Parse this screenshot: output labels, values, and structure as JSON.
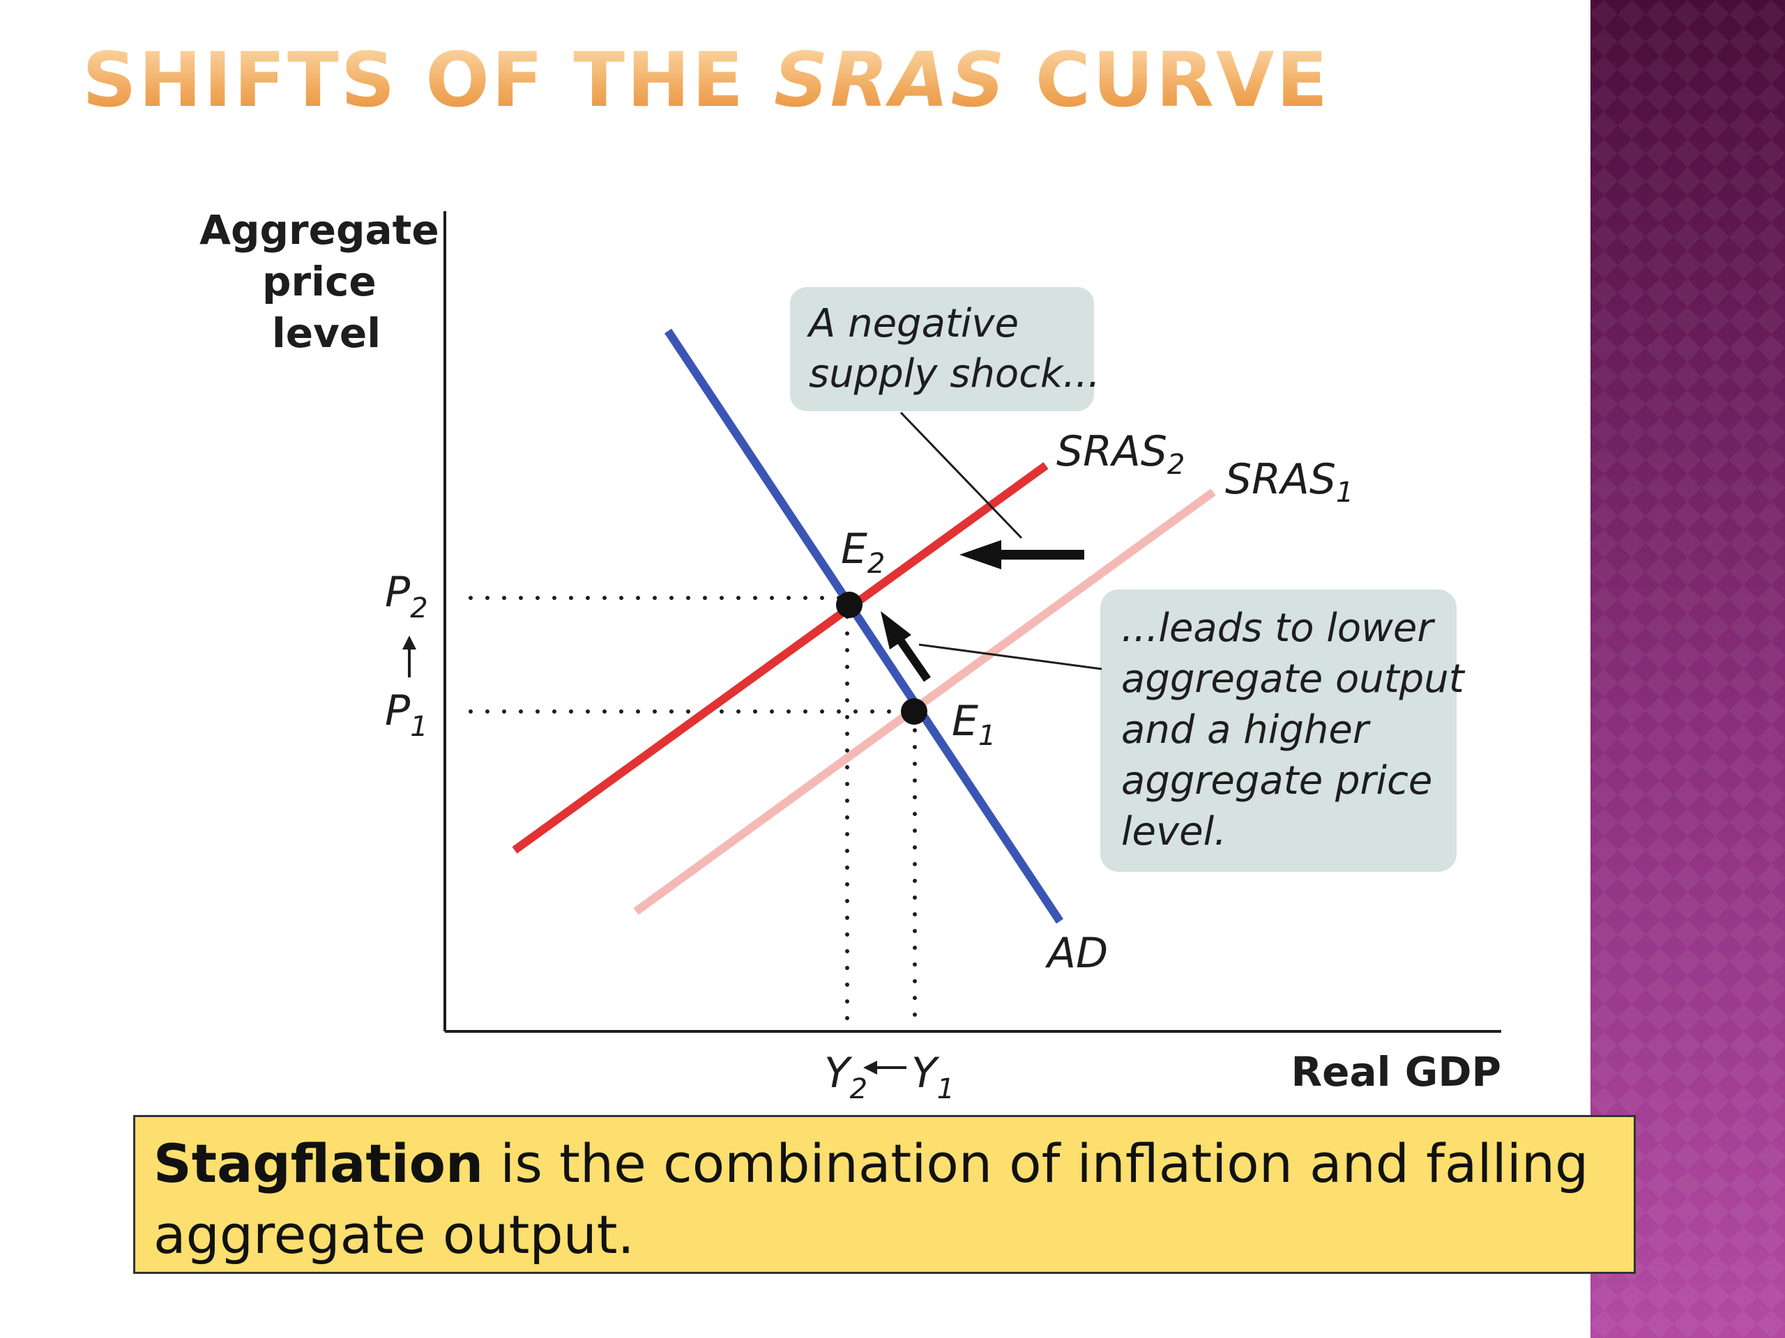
{
  "slide": {
    "title_prefix": "SHIFTS OF THE ",
    "title_emphasis": "SRAS",
    "title_suffix": " CURVE",
    "colors": {
      "title": "#f2ae64",
      "side_panel_top": "#4a0d3a",
      "side_panel_bottom": "#b24aa3",
      "definition_box": "#fcdf6e"
    }
  },
  "diagram": {
    "y_axis_label": [
      "Aggregate",
      "price",
      "level"
    ],
    "x_axis_label": "Real GDP",
    "curves": {
      "sras2": {
        "base": "SRAS",
        "sub": "2",
        "color": "#e23232"
      },
      "sras1": {
        "base": "SRAS",
        "sub": "1",
        "color": "#f5b9b5"
      },
      "ad": {
        "label": "AD",
        "color": "#3a55b4"
      }
    },
    "points": {
      "e2": {
        "base": "E",
        "sub": "2"
      },
      "e1": {
        "base": "E",
        "sub": "1"
      }
    },
    "ticks": {
      "p2": {
        "base": "P",
        "sub": "2"
      },
      "p1": {
        "base": "P",
        "sub": "1"
      },
      "y2": {
        "base": "Y",
        "sub": "2"
      },
      "y1": {
        "base": "Y",
        "sub": "1"
      }
    },
    "callout_top": [
      "A negative",
      "supply shock..."
    ],
    "callout_right": [
      "...leads to lower",
      "aggregate output",
      "and a higher",
      "aggregate price",
      "level."
    ],
    "callout_fill": "#d5e2df"
  },
  "definition": {
    "term": "Stagflation",
    "text": " is the combination of inflation and falling aggregate output."
  }
}
